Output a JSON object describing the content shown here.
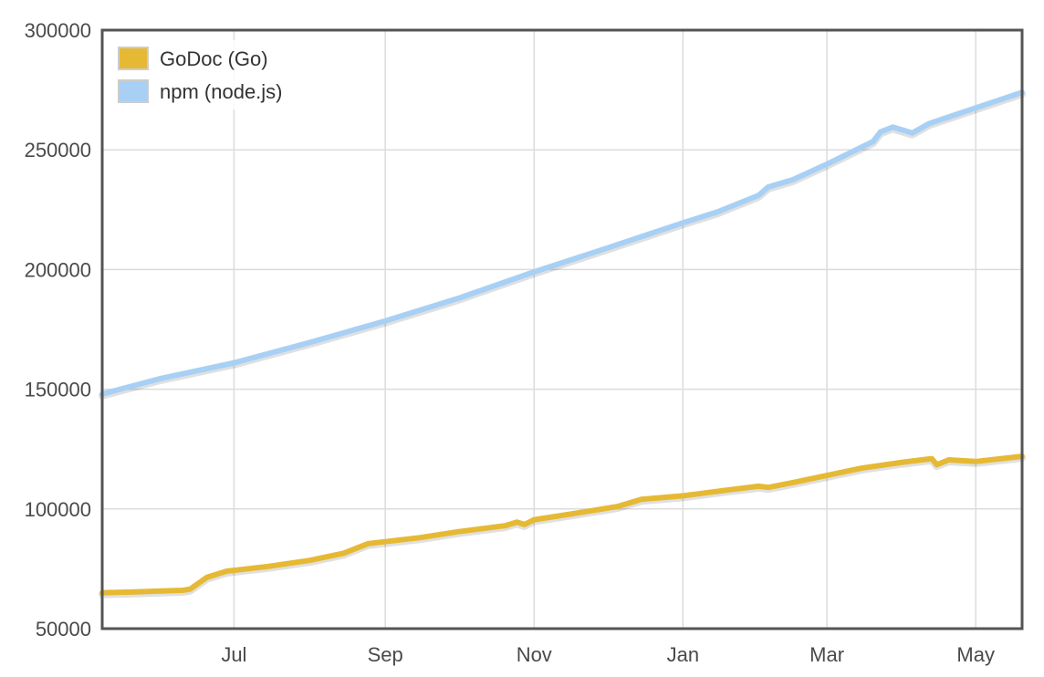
{
  "chart_data": {
    "type": "line",
    "ylim": [
      50000,
      300000
    ],
    "yticks": [
      50000,
      100000,
      150000,
      200000,
      250000,
      300000
    ],
    "ytick_labels": [
      "50000",
      "100000",
      "150000",
      "200000",
      "250000",
      "300000"
    ],
    "xlim": [
      "2013-05-08",
      "2014-05-20"
    ],
    "xticks": [
      "2013-07-01",
      "2013-09-01",
      "2013-11-01",
      "2014-01-01",
      "2014-03-01",
      "2014-05-01"
    ],
    "xtick_labels": [
      "Jul",
      "Sep",
      "Nov",
      "Jan",
      "Mar",
      "May"
    ],
    "grid": true,
    "legend_position": "top-left",
    "series": [
      {
        "name": "GoDoc (Go)",
        "color": "#e6b934",
        "points": [
          [
            "2013-05-08",
            65000
          ],
          [
            "2013-05-20",
            65300
          ],
          [
            "2013-06-01",
            65700
          ],
          [
            "2013-06-10",
            66000
          ],
          [
            "2013-06-13",
            66500
          ],
          [
            "2013-06-20",
            71500
          ],
          [
            "2013-06-28",
            74000
          ],
          [
            "2013-07-15",
            76000
          ],
          [
            "2013-08-01",
            78500
          ],
          [
            "2013-08-15",
            81500
          ],
          [
            "2013-08-25",
            85500
          ],
          [
            "2013-09-15",
            88000
          ],
          [
            "2013-10-01",
            90500
          ],
          [
            "2013-10-20",
            93000
          ],
          [
            "2013-10-25",
            94500
          ],
          [
            "2013-10-28",
            93500
          ],
          [
            "2013-11-01",
            95500
          ],
          [
            "2013-11-20",
            98500
          ],
          [
            "2013-12-05",
            101000
          ],
          [
            "2013-12-15",
            104000
          ],
          [
            "2014-01-01",
            105500
          ],
          [
            "2014-01-20",
            108000
          ],
          [
            "2014-02-01",
            109500
          ],
          [
            "2014-02-05",
            109000
          ],
          [
            "2014-02-15",
            111000
          ],
          [
            "2014-03-01",
            114000
          ],
          [
            "2014-03-15",
            117000
          ],
          [
            "2014-04-01",
            119500
          ],
          [
            "2014-04-13",
            121000
          ],
          [
            "2014-04-15",
            118500
          ],
          [
            "2014-04-20",
            120500
          ],
          [
            "2014-05-01",
            119800
          ],
          [
            "2014-05-20",
            122000
          ]
        ]
      },
      {
        "name": "npm (node.js)",
        "color": "#a8d0f5",
        "points": [
          [
            "2013-05-08",
            148000
          ],
          [
            "2013-06-01",
            154500
          ],
          [
            "2013-07-01",
            161000
          ],
          [
            "2013-08-01",
            169500
          ],
          [
            "2013-09-01",
            178500
          ],
          [
            "2013-10-01",
            188000
          ],
          [
            "2013-11-01",
            199000
          ],
          [
            "2013-12-01",
            209000
          ],
          [
            "2014-01-01",
            219500
          ],
          [
            "2014-01-15",
            224000
          ],
          [
            "2014-02-01",
            231000
          ],
          [
            "2014-02-05",
            234500
          ],
          [
            "2014-02-15",
            237500
          ],
          [
            "2014-03-01",
            244000
          ],
          [
            "2014-03-20",
            253500
          ],
          [
            "2014-03-23",
            257500
          ],
          [
            "2014-03-28",
            259500
          ],
          [
            "2014-04-05",
            257000
          ],
          [
            "2014-04-12",
            261000
          ],
          [
            "2014-05-20",
            274000
          ]
        ]
      }
    ]
  }
}
